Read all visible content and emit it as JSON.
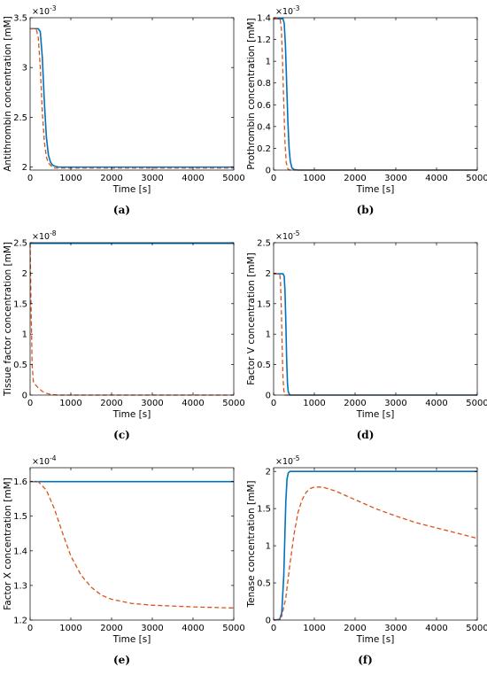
{
  "colors": {
    "solid": "#0072bd",
    "dashed": "#d95319",
    "axis": "#000000"
  },
  "chart_data": [
    {
      "id": "a",
      "type": "line",
      "caption": "(a)",
      "xlabel": "Time [s]",
      "ylabel": "Antithrombin concentration [mM]",
      "multiplier": "×10-3",
      "xlim": [
        0,
        5000
      ],
      "ylim": [
        1.97,
        3.5
      ],
      "xticks": [
        0,
        1000,
        2000,
        3000,
        4000,
        5000
      ],
      "xtick_labels": [
        "0",
        "1000",
        "2000",
        "3000",
        "4000",
        "5000"
      ],
      "yticks": [
        2,
        2.5,
        3,
        3.5
      ],
      "ytick_labels": [
        "2",
        "2.5",
        "3",
        "3.5"
      ],
      "series": [
        {
          "style": "solid",
          "x": [
            0,
            200,
            250,
            300,
            350,
            400,
            450,
            500,
            550,
            600,
            700,
            800,
            1000,
            5000
          ],
          "y": [
            3.39,
            3.39,
            3.36,
            3.1,
            2.65,
            2.3,
            2.12,
            2.05,
            2.02,
            2.01,
            2.0,
            2.0,
            2.0,
            2.0
          ]
        },
        {
          "style": "dashed",
          "x": [
            0,
            150,
            200,
            250,
            300,
            350,
            400,
            450,
            500,
            550,
            600,
            800,
            1000,
            5000
          ],
          "y": [
            3.39,
            3.39,
            3.3,
            3.0,
            2.55,
            2.25,
            2.1,
            2.04,
            2.02,
            2.0,
            1.99,
            1.99,
            1.99,
            1.99
          ]
        }
      ]
    },
    {
      "id": "b",
      "type": "line",
      "caption": "(b)",
      "xlabel": "Time [s]",
      "ylabel": "Prothrombin concentration [mM]",
      "multiplier": "×10-3",
      "xlim": [
        0,
        5000
      ],
      "ylim": [
        0,
        1.4
      ],
      "xticks": [
        0,
        1000,
        2000,
        3000,
        4000,
        5000
      ],
      "xtick_labels": [
        "0",
        "1000",
        "2000",
        "3000",
        "4000",
        "5000"
      ],
      "yticks": [
        0,
        0.2,
        0.4,
        0.6,
        0.8,
        1,
        1.2,
        1.4
      ],
      "ytick_labels": [
        "0",
        "0.2",
        "0.4",
        "0.6",
        "0.8",
        "1",
        "1.2",
        "1.4"
      ],
      "series": [
        {
          "style": "solid",
          "x": [
            0,
            230,
            260,
            290,
            320,
            350,
            380,
            410,
            450,
            500,
            600,
            5000
          ],
          "y": [
            1.39,
            1.39,
            1.35,
            1.15,
            0.8,
            0.45,
            0.2,
            0.08,
            0.02,
            0.005,
            0.0,
            0.0
          ]
        },
        {
          "style": "dashed",
          "x": [
            0,
            160,
            190,
            220,
            250,
            280,
            310,
            350,
            400,
            5000
          ],
          "y": [
            1.39,
            1.39,
            1.3,
            1.0,
            0.6,
            0.25,
            0.07,
            0.01,
            0.0,
            0.0
          ]
        }
      ]
    },
    {
      "id": "c",
      "type": "line",
      "caption": "(c)",
      "xlabel": "Time [s]",
      "ylabel": "Tissue factor concentration [mM]",
      "multiplier": "×10-8",
      "xlim": [
        0,
        5000
      ],
      "ylim": [
        0,
        2.5
      ],
      "xticks": [
        0,
        1000,
        2000,
        3000,
        4000,
        5000
      ],
      "xtick_labels": [
        "0",
        "1000",
        "2000",
        "3000",
        "4000",
        "5000"
      ],
      "yticks": [
        0,
        0.5,
        1,
        1.5,
        2,
        2.5
      ],
      "ytick_labels": [
        "0",
        "0.5",
        "1",
        "1.5",
        "2",
        "2.5"
      ],
      "series": [
        {
          "style": "solid",
          "x": [
            0,
            5000
          ],
          "y": [
            2.49,
            2.49
          ]
        },
        {
          "style": "dashed",
          "x": [
            0,
            20,
            50,
            80,
            100,
            130,
            200,
            300,
            400,
            500,
            700,
            1000,
            5000
          ],
          "y": [
            2.49,
            1.6,
            0.5,
            0.22,
            0.2,
            0.17,
            0.12,
            0.06,
            0.03,
            0.01,
            0.0,
            0.0,
            0.0
          ]
        }
      ]
    },
    {
      "id": "d",
      "type": "line",
      "caption": "(d)",
      "xlabel": "Time [s]",
      "ylabel": "Factor V concentration [mM]",
      "multiplier": "×10-5",
      "xlim": [
        0,
        5000
      ],
      "ylim": [
        0,
        2.5
      ],
      "xticks": [
        0,
        1000,
        2000,
        3000,
        4000,
        5000
      ],
      "xtick_labels": [
        "0",
        "1000",
        "2000",
        "3000",
        "4000",
        "5000"
      ],
      "yticks": [
        0,
        0.5,
        1,
        1.5,
        2,
        2.5
      ],
      "ytick_labels": [
        "0",
        "0.5",
        "1",
        "1.5",
        "2",
        "2.5"
      ],
      "series": [
        {
          "style": "solid",
          "x": [
            0,
            230,
            260,
            280,
            300,
            320,
            340,
            360,
            400,
            5000
          ],
          "y": [
            1.99,
            1.99,
            1.95,
            1.7,
            1.2,
            0.6,
            0.2,
            0.05,
            0.0,
            0.0
          ]
        },
        {
          "style": "dashed",
          "x": [
            0,
            150,
            170,
            190,
            210,
            230,
            250,
            280,
            5000
          ],
          "y": [
            1.99,
            1.99,
            1.85,
            1.4,
            0.8,
            0.3,
            0.08,
            0.0,
            0.0
          ]
        }
      ]
    },
    {
      "id": "e",
      "type": "line",
      "caption": "(e)",
      "xlabel": "Time [s]",
      "ylabel": "Factor X concentration [mM]",
      "multiplier": "×10-4",
      "xlim": [
        0,
        5000
      ],
      "ylim": [
        1.2,
        1.64
      ],
      "xticks": [
        0,
        1000,
        2000,
        3000,
        4000,
        5000
      ],
      "xtick_labels": [
        "0",
        "1000",
        "2000",
        "3000",
        "4000",
        "5000"
      ],
      "yticks": [
        1.2,
        1.3,
        1.4,
        1.5,
        1.6
      ],
      "ytick_labels": [
        "1.2",
        "1.3",
        "1.4",
        "1.5",
        "1.6"
      ],
      "series": [
        {
          "style": "solid",
          "x": [
            0,
            5000
          ],
          "y": [
            1.6,
            1.6
          ]
        },
        {
          "style": "dashed",
          "x": [
            0,
            200,
            400,
            600,
            800,
            1000,
            1250,
            1500,
            1750,
            2000,
            2500,
            3000,
            4000,
            5000
          ],
          "y": [
            1.6,
            1.6,
            1.575,
            1.52,
            1.45,
            1.385,
            1.33,
            1.295,
            1.272,
            1.26,
            1.248,
            1.243,
            1.238,
            1.235
          ]
        }
      ]
    },
    {
      "id": "f",
      "type": "line",
      "caption": "(f)",
      "xlabel": "Time [s]",
      "ylabel": "Tenase concentration [mM]",
      "multiplier": "×10-5",
      "xlim": [
        0,
        5000
      ],
      "ylim": [
        0,
        2.05
      ],
      "xticks": [
        0,
        1000,
        2000,
        3000,
        4000,
        5000
      ],
      "xtick_labels": [
        "0",
        "1000",
        "2000",
        "3000",
        "4000",
        "5000"
      ],
      "yticks": [
        0,
        0.5,
        1,
        1.5,
        2
      ],
      "ytick_labels": [
        "0",
        "0.5",
        "1",
        "1.5",
        "2"
      ],
      "series": [
        {
          "style": "solid",
          "x": [
            0,
            150,
            200,
            250,
            280,
            300,
            330,
            360,
            400,
            450,
            5000
          ],
          "y": [
            0.0,
            0.01,
            0.1,
            0.6,
            1.2,
            1.6,
            1.9,
            1.98,
            2.0,
            2.0,
            2.0
          ]
        },
        {
          "style": "dashed",
          "x": [
            0,
            100,
            200,
            300,
            400,
            500,
            600,
            700,
            800,
            900,
            1000,
            1200,
            1500,
            2000,
            2500,
            3000,
            3500,
            4000,
            4500,
            5000
          ],
          "y": [
            0.0,
            0.005,
            0.05,
            0.3,
            0.75,
            1.15,
            1.45,
            1.62,
            1.72,
            1.77,
            1.79,
            1.79,
            1.74,
            1.62,
            1.5,
            1.4,
            1.31,
            1.24,
            1.17,
            1.1
          ]
        }
      ]
    }
  ]
}
